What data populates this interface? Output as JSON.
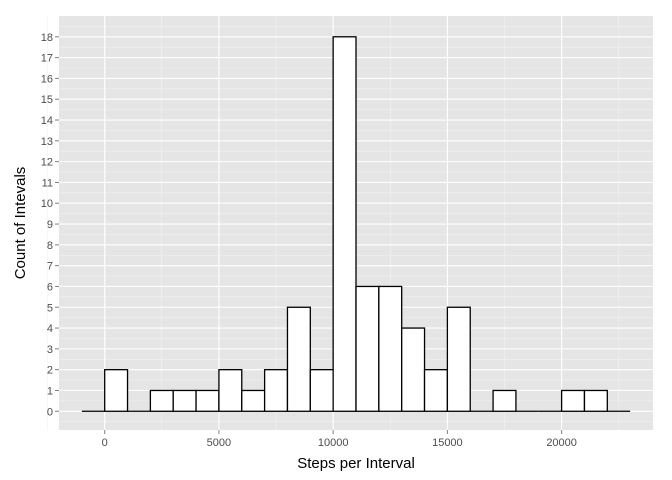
{
  "chart_data": {
    "type": "bar",
    "subtype": "histogram",
    "title": "",
    "xlabel": "Steps per Interval",
    "ylabel": "Count of Intevals",
    "bin_width": 1000,
    "bins": [
      {
        "start": -1000,
        "end": 0,
        "count": 0
      },
      {
        "start": 0,
        "end": 1000,
        "count": 2
      },
      {
        "start": 1000,
        "end": 2000,
        "count": 0
      },
      {
        "start": 2000,
        "end": 3000,
        "count": 1
      },
      {
        "start": 3000,
        "end": 4000,
        "count": 1
      },
      {
        "start": 4000,
        "end": 5000,
        "count": 1
      },
      {
        "start": 5000,
        "end": 6000,
        "count": 2
      },
      {
        "start": 6000,
        "end": 7000,
        "count": 1
      },
      {
        "start": 7000,
        "end": 8000,
        "count": 2
      },
      {
        "start": 8000,
        "end": 9000,
        "count": 5
      },
      {
        "start": 9000,
        "end": 10000,
        "count": 2
      },
      {
        "start": 10000,
        "end": 11000,
        "count": 18
      },
      {
        "start": 11000,
        "end": 12000,
        "count": 6
      },
      {
        "start": 12000,
        "end": 13000,
        "count": 6
      },
      {
        "start": 13000,
        "end": 14000,
        "count": 4
      },
      {
        "start": 14000,
        "end": 15000,
        "count": 2
      },
      {
        "start": 15000,
        "end": 16000,
        "count": 5
      },
      {
        "start": 16000,
        "end": 17000,
        "count": 0
      },
      {
        "start": 17000,
        "end": 18000,
        "count": 1
      },
      {
        "start": 18000,
        "end": 19000,
        "count": 0
      },
      {
        "start": 19000,
        "end": 20000,
        "count": 0
      },
      {
        "start": 20000,
        "end": 21000,
        "count": 1
      },
      {
        "start": 21000,
        "end": 22000,
        "count": 1
      },
      {
        "start": 22000,
        "end": 23000,
        "count": 0
      }
    ],
    "x_ticks": [
      "0",
      "5000",
      "10000",
      "15000",
      "20000"
    ],
    "y_ticks": [
      "0",
      "1",
      "2",
      "3",
      "4",
      "5",
      "6",
      "7",
      "8",
      "9",
      "10",
      "11",
      "12",
      "13",
      "14",
      "15",
      "16",
      "17",
      "18"
    ],
    "xlim": [
      -2000,
      24000
    ],
    "ylim": [
      -0.9,
      19
    ],
    "grid": true,
    "legend": "none",
    "colors": {
      "panel_background": "#e5e5e5",
      "grid_major": "#ffffff",
      "grid_minor": "#f2f2f2",
      "bar_fill": "#ffffff",
      "bar_stroke": "#000000"
    }
  }
}
